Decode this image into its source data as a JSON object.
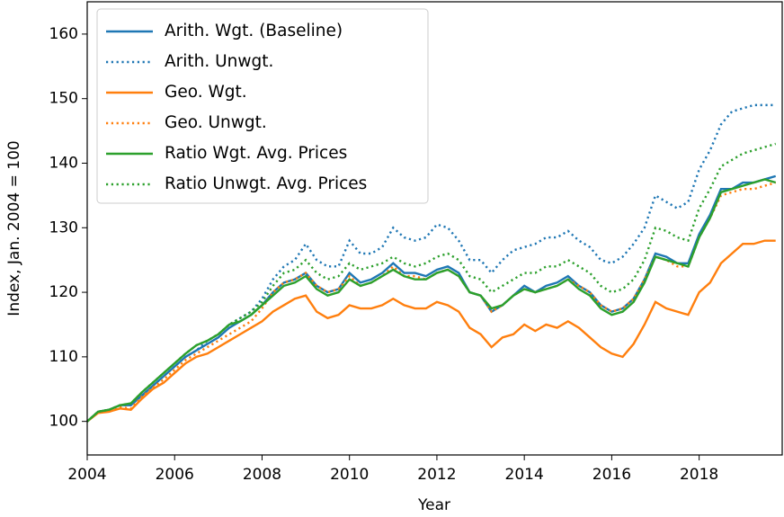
{
  "chart_data": {
    "type": "line",
    "xlabel": "Year",
    "ylabel": "Index, Jan. 2004 = 100",
    "x": [
      2004,
      2004.25,
      2004.5,
      2004.75,
      2005,
      2005.25,
      2005.5,
      2005.75,
      2006,
      2006.25,
      2006.5,
      2006.75,
      2007,
      2007.25,
      2007.5,
      2007.75,
      2008,
      2008.25,
      2008.5,
      2008.75,
      2009,
      2009.25,
      2009.5,
      2009.75,
      2010,
      2010.25,
      2010.5,
      2010.75,
      2011,
      2011.25,
      2011.5,
      2011.75,
      2012,
      2012.25,
      2012.5,
      2012.75,
      2013,
      2013.25,
      2013.5,
      2013.75,
      2014,
      2014.25,
      2014.5,
      2014.75,
      2015,
      2015.25,
      2015.5,
      2015.75,
      2016,
      2016.25,
      2016.5,
      2016.75,
      2017,
      2017.25,
      2017.5,
      2017.75,
      2018,
      2018.25,
      2018.5,
      2018.75,
      2019,
      2019.25,
      2019.5,
      2019.75
    ],
    "series": [
      {
        "name": "Arith. Wgt. (Baseline)",
        "color": "#1f77b4",
        "style": "solid",
        "values": [
          100,
          101.5,
          101.8,
          102.5,
          102.5,
          104,
          105.5,
          107,
          108.5,
          110,
          111,
          112,
          113,
          114.5,
          115.5,
          116.5,
          118,
          120,
          121.5,
          122,
          123,
          121,
          120,
          120.5,
          123,
          121.5,
          122,
          123,
          124.5,
          123,
          123,
          122.5,
          123.5,
          124,
          123,
          120,
          119.5,
          117,
          118,
          119.5,
          121,
          120,
          121,
          121.5,
          122.5,
          121,
          120,
          118,
          117,
          117.5,
          119,
          122,
          126,
          125.5,
          124.5,
          124.5,
          129,
          132,
          136,
          136,
          137,
          137,
          137.5,
          138
        ]
      },
      {
        "name": "Arith. Unwgt.",
        "color": "#1f77b4",
        "style": "dotted",
        "values": [
          100,
          101.5,
          101.8,
          102.5,
          102.5,
          104,
          105.5,
          107,
          108.5,
          110,
          111,
          112.5,
          113.5,
          115,
          116,
          117,
          119,
          122,
          124,
          125,
          127.5,
          125,
          124,
          124,
          128,
          126,
          126,
          127,
          130,
          128.5,
          128,
          128.5,
          130.5,
          130,
          128,
          125,
          125,
          123,
          125,
          126.5,
          127,
          127.5,
          128.5,
          128.5,
          129.5,
          128,
          127,
          125,
          124.5,
          125.5,
          127.5,
          130,
          135,
          134,
          133,
          134,
          139,
          142,
          146,
          148,
          148.5,
          149,
          149,
          149
        ]
      },
      {
        "name": "Geo. Wgt.",
        "color": "#ff7f0e",
        "style": "solid",
        "values": [
          100,
          101.3,
          101.5,
          102,
          101.8,
          103.5,
          105,
          106,
          107.5,
          109,
          110,
          110.5,
          111.5,
          112.5,
          113.5,
          114.5,
          115.5,
          117,
          118,
          119,
          119.5,
          117,
          116,
          116.5,
          118,
          117.5,
          117.5,
          118,
          119,
          118,
          117.5,
          117.5,
          118.5,
          118,
          117,
          114.5,
          113.5,
          111.5,
          113,
          113.5,
          115,
          114,
          115,
          114.5,
          115.5,
          114.5,
          113,
          111.5,
          110.5,
          110,
          112,
          115,
          118.5,
          117.5,
          117,
          116.5,
          120,
          121.5,
          124.5,
          126,
          127.5,
          127.5,
          128,
          128
        ]
      },
      {
        "name": "Geo. Unwgt.",
        "color": "#ff7f0e",
        "style": "dotted",
        "values": [
          100,
          101.4,
          101.6,
          102.2,
          102,
          103.8,
          105.2,
          106.5,
          108,
          109.5,
          110.5,
          111.5,
          112.5,
          113.5,
          114.5,
          115.5,
          117.5,
          120,
          121.5,
          122,
          123,
          121,
          120,
          120.5,
          122.5,
          121,
          121.5,
          122.5,
          124,
          122.5,
          122.5,
          122,
          123,
          123.5,
          122.5,
          120,
          119.5,
          117,
          118,
          119.5,
          120.5,
          120,
          120.5,
          121,
          122,
          121,
          120,
          118,
          117,
          117.5,
          119,
          122,
          125.5,
          125,
          124,
          124,
          128.5,
          131.5,
          135,
          135.5,
          136,
          136,
          136.5,
          137
        ]
      },
      {
        "name": "Ratio Wgt. Avg. Prices",
        "color": "#2ca02c",
        "style": "solid",
        "values": [
          100,
          101.5,
          101.8,
          102.5,
          102.8,
          104.5,
          106,
          107.5,
          109,
          110.5,
          111.8,
          112.5,
          113.5,
          115,
          115.5,
          116.5,
          118,
          119.5,
          121,
          121.5,
          122.5,
          120.5,
          119.5,
          120,
          122,
          121,
          121.5,
          122.5,
          123.5,
          122.5,
          122,
          122,
          123,
          123.5,
          122.5,
          120,
          119.5,
          117.5,
          118,
          119.5,
          120.5,
          120,
          120.5,
          121,
          122,
          120.5,
          119.5,
          117.5,
          116.5,
          117,
          118.5,
          121.5,
          125.5,
          125,
          124.5,
          124,
          128.5,
          131.5,
          135.5,
          136,
          136.5,
          137,
          137.5,
          137
        ]
      },
      {
        "name": "Ratio Unwgt. Avg. Prices",
        "color": "#2ca02c",
        "style": "dotted",
        "values": [
          100,
          101.5,
          101.8,
          102.5,
          102.8,
          104.5,
          106,
          107.5,
          109,
          110.5,
          111.8,
          112.5,
          113.5,
          115,
          116,
          117,
          118.5,
          121,
          123,
          123.5,
          125,
          123,
          122,
          122.5,
          124.5,
          123.5,
          124,
          124.5,
          125.5,
          124.5,
          124,
          124.5,
          125.5,
          126,
          125,
          122.5,
          122,
          120,
          121,
          122,
          123,
          123,
          124,
          124,
          125,
          124,
          123,
          121,
          120,
          120.5,
          122,
          125,
          130,
          129.5,
          128.5,
          128,
          133,
          136,
          139.5,
          140.5,
          141.5,
          142,
          142.5,
          143
        ]
      }
    ],
    "xlim": [
      2004,
      2019.9
    ],
    "xticks": [
      2004,
      2006,
      2008,
      2010,
      2012,
      2014,
      2016,
      2018
    ],
    "ylim": [
      94.8,
      165
    ],
    "yticks": [
      100,
      110,
      120,
      130,
      140,
      150,
      160
    ],
    "legend": "upper left"
  }
}
